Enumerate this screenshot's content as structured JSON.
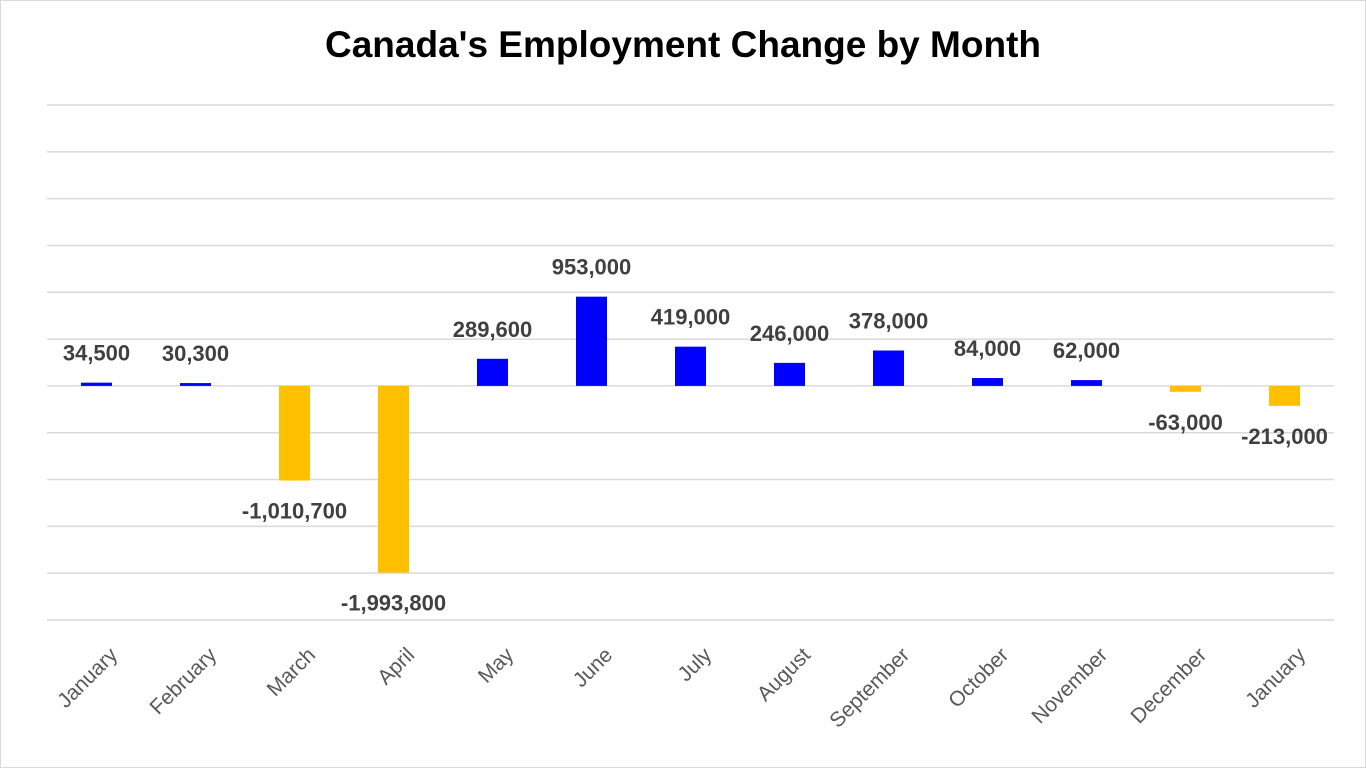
{
  "chart_data": {
    "type": "bar",
    "title": "Canada's Employment Change by Month",
    "xlabel": "",
    "ylabel": "",
    "ylim": [
      -2500000,
      3000000
    ],
    "grid_step": 500000,
    "grid": true,
    "y_tick_labels_shown": false,
    "categories": [
      "January",
      "February",
      "March",
      "April",
      "May",
      "June",
      "July",
      "August",
      "September",
      "October",
      "November",
      "December",
      "January"
    ],
    "values": [
      34500,
      30300,
      -1010700,
      -1993800,
      289600,
      953000,
      419000,
      246000,
      378000,
      84000,
      62000,
      -63000,
      -213000
    ],
    "value_labels": [
      "34,500",
      "30,300",
      "-1,010,700",
      "-1,993,800",
      "289,600",
      "953,000",
      "419,000",
      "246,000",
      "378,000",
      "84,000",
      "62,000",
      "-63,000",
      "-213,000"
    ],
    "colors": {
      "positive": "#0000ff",
      "negative": "#ffc000",
      "grid": "#d9d9d9",
      "label": "#404040",
      "tick": "#595959"
    }
  }
}
